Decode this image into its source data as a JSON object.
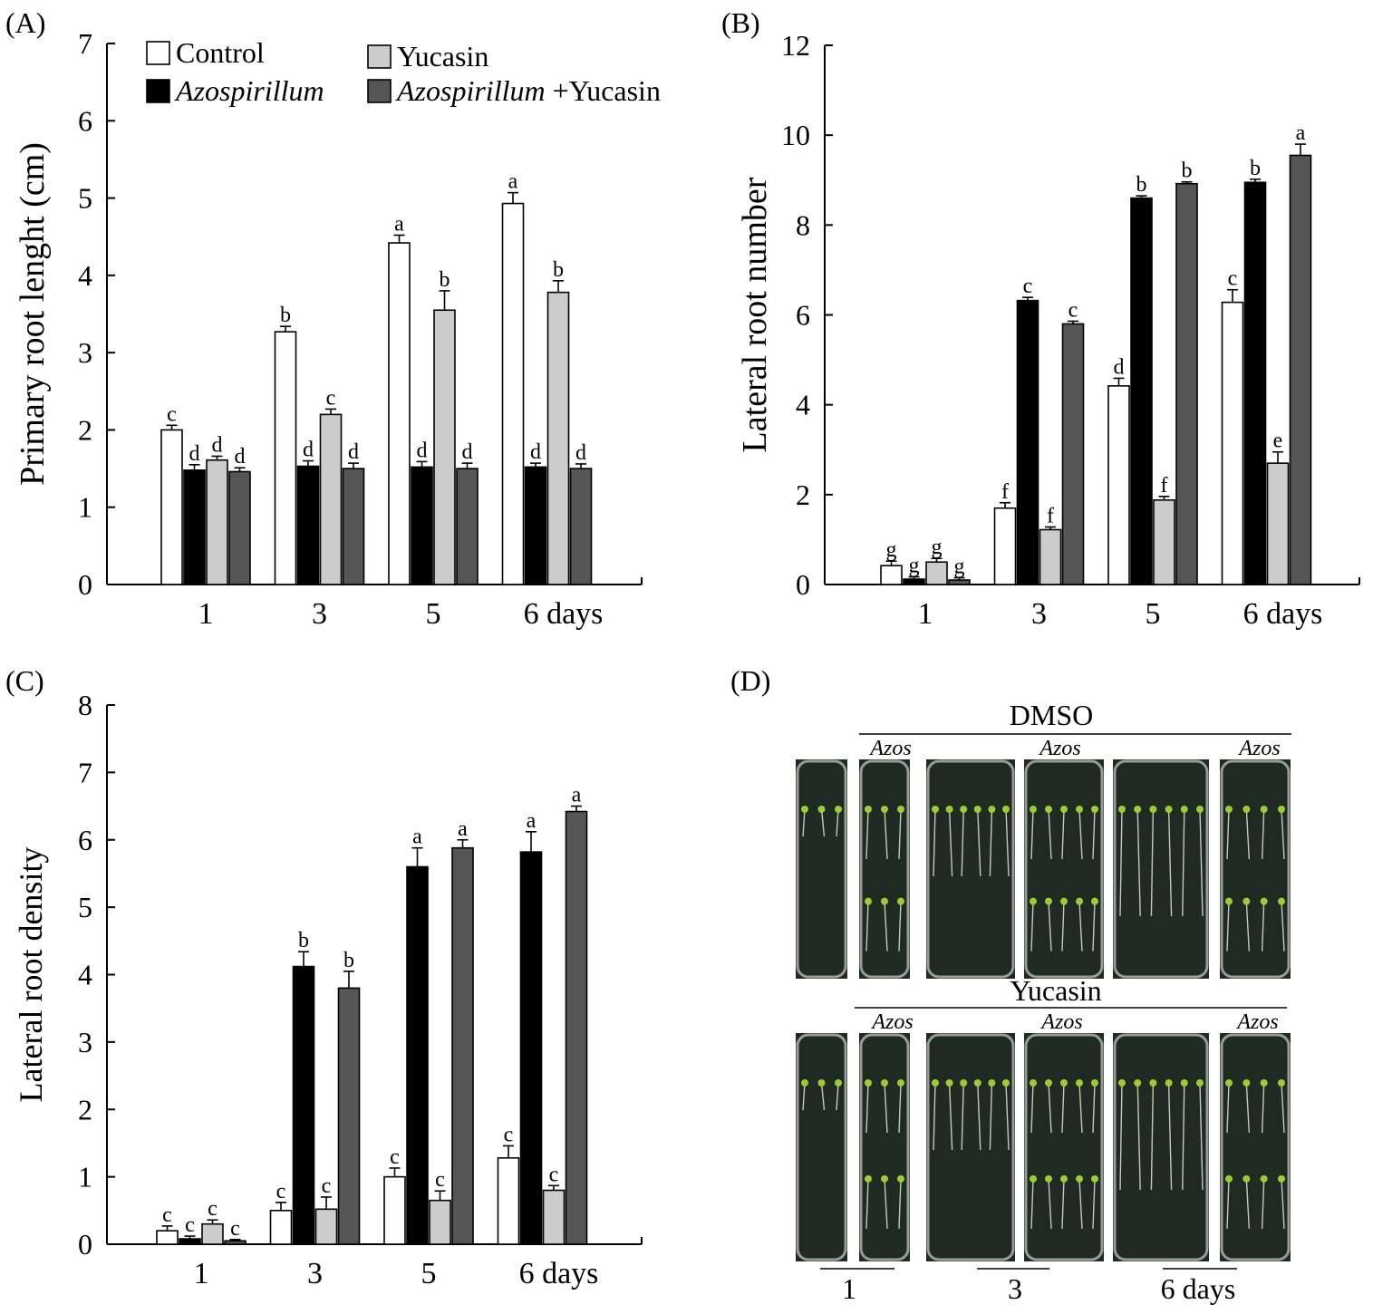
{
  "colors": {
    "control": "#ffffff",
    "azospirillum": "#000000",
    "yucasin": "#cccccc",
    "azos_yucasin": "#555555",
    "plate_bg": "#1e2a22",
    "plate_rim": "#c9cfc6",
    "seedling_leaf": "#9acd32",
    "seedling_root": "#dfe6d4"
  },
  "legend": {
    "items": [
      {
        "key": "control",
        "label": "Control",
        "italic": "",
        "suffix": ""
      },
      {
        "key": "yucasin",
        "label": "Yucasin",
        "italic": "",
        "suffix": ""
      },
      {
        "key": "azospirillum",
        "label": "",
        "italic": "Azospirillum",
        "suffix": ""
      },
      {
        "key": "azos_yucasin",
        "label": "",
        "italic": "Azospirillum",
        "suffix": " +Yucasin"
      }
    ]
  },
  "chart_data": [
    {
      "panel": "(A)",
      "type": "bar",
      "ylabel": "Primary root lenght (cm)",
      "ylim": [
        0,
        7
      ],
      "yticks": [
        "0",
        "1",
        "2",
        "3",
        "4",
        "5",
        "6",
        "7"
      ],
      "categories": [
        "1",
        "3",
        "5",
        "6 days"
      ],
      "series": [
        {
          "name": "Control",
          "key": "control",
          "values": [
            2.0,
            3.27,
            4.42,
            4.93
          ],
          "errors": [
            0.06,
            0.07,
            0.1,
            0.14
          ],
          "letters": [
            "c",
            "b",
            "a",
            "a"
          ]
        },
        {
          "name": "Azospirillum",
          "key": "azospirillum",
          "values": [
            1.48,
            1.53,
            1.52,
            1.52
          ],
          "errors": [
            0.07,
            0.07,
            0.07,
            0.05
          ],
          "letters": [
            "d",
            "d",
            "d",
            "d"
          ]
        },
        {
          "name": "Yucasin",
          "key": "yucasin",
          "values": [
            1.61,
            2.2,
            3.55,
            3.78
          ],
          "errors": [
            0.05,
            0.07,
            0.25,
            0.15
          ],
          "letters": [
            "d",
            "c",
            "b",
            "b"
          ]
        },
        {
          "name": "Azospirillum +Yucasin",
          "key": "azos_yucasin",
          "values": [
            1.46,
            1.5,
            1.5,
            1.5
          ],
          "errors": [
            0.05,
            0.07,
            0.07,
            0.06
          ],
          "letters": [
            "d",
            "d",
            "d",
            "d"
          ]
        }
      ]
    },
    {
      "panel": "(B)",
      "type": "bar",
      "ylabel": "Lateral root number",
      "ylim": [
        0,
        12
      ],
      "yticks": [
        "0",
        "2",
        "4",
        "6",
        "8",
        "10",
        "12"
      ],
      "categories": [
        "1",
        "3",
        "5",
        "6 days"
      ],
      "series": [
        {
          "name": "Control",
          "key": "control",
          "values": [
            0.42,
            1.7,
            4.42,
            6.28
          ],
          "errors": [
            0.1,
            0.12,
            0.17,
            0.28
          ],
          "letters": [
            "g",
            "f",
            "d",
            "c"
          ]
        },
        {
          "name": "Azospirillum",
          "key": "azospirillum",
          "values": [
            0.12,
            6.32,
            8.6,
            8.95
          ],
          "errors": [
            0.05,
            0.07,
            0.05,
            0.07
          ],
          "letters": [
            "g",
            "c",
            "b",
            "b"
          ]
        },
        {
          "name": "Yucasin",
          "key": "yucasin",
          "values": [
            0.5,
            1.22,
            1.88,
            2.7
          ],
          "errors": [
            0.08,
            0.06,
            0.08,
            0.25
          ],
          "letters": [
            "g",
            "f",
            "f",
            "e"
          ]
        },
        {
          "name": "Azospirillum +Yucasin",
          "key": "azos_yucasin",
          "values": [
            0.1,
            5.8,
            8.92,
            9.55
          ],
          "errors": [
            0.05,
            0.06,
            0.04,
            0.25
          ],
          "letters": [
            "g",
            "c",
            "b",
            "a"
          ]
        }
      ]
    },
    {
      "panel": "(C)",
      "type": "bar",
      "ylabel": "Lateral root density",
      "ylim": [
        0,
        8
      ],
      "yticks": [
        "0",
        "1",
        "2",
        "3",
        "4",
        "5",
        "6",
        "7",
        "8"
      ],
      "categories": [
        "1",
        "3",
        "5",
        "6 days"
      ],
      "series": [
        {
          "name": "Control",
          "key": "control",
          "values": [
            0.2,
            0.5,
            1.0,
            1.28
          ],
          "errors": [
            0.07,
            0.12,
            0.13,
            0.18
          ],
          "letters": [
            "c",
            "c",
            "c",
            "c"
          ]
        },
        {
          "name": "Azospirillum",
          "key": "azospirillum",
          "values": [
            0.08,
            4.12,
            5.6,
            5.82
          ],
          "errors": [
            0.04,
            0.22,
            0.28,
            0.3
          ],
          "letters": [
            "c",
            "b",
            "a",
            "a"
          ]
        },
        {
          "name": "Yucasin",
          "key": "yucasin",
          "values": [
            0.3,
            0.52,
            0.65,
            0.8
          ],
          "errors": [
            0.06,
            0.18,
            0.14,
            0.07
          ],
          "letters": [
            "c",
            "c",
            "c",
            "c"
          ]
        },
        {
          "name": "Azospirillum +Yucasin",
          "key": "azos_yucasin",
          "values": [
            0.05,
            3.8,
            5.88,
            6.42
          ],
          "errors": [
            0.02,
            0.25,
            0.12,
            0.08
          ],
          "letters": [
            "c",
            "b",
            "a",
            "a"
          ]
        }
      ]
    }
  ],
  "photo_panel": {
    "label": "(D)",
    "rows": [
      {
        "title": "DMSO",
        "azos_labels": [
          "Azos",
          "Azos",
          "Azos"
        ]
      },
      {
        "title": "Yucasin",
        "azos_labels": [
          "Azos",
          "Azos",
          "Azos"
        ]
      }
    ],
    "day_labels": [
      "1",
      "3",
      "6 days"
    ]
  }
}
